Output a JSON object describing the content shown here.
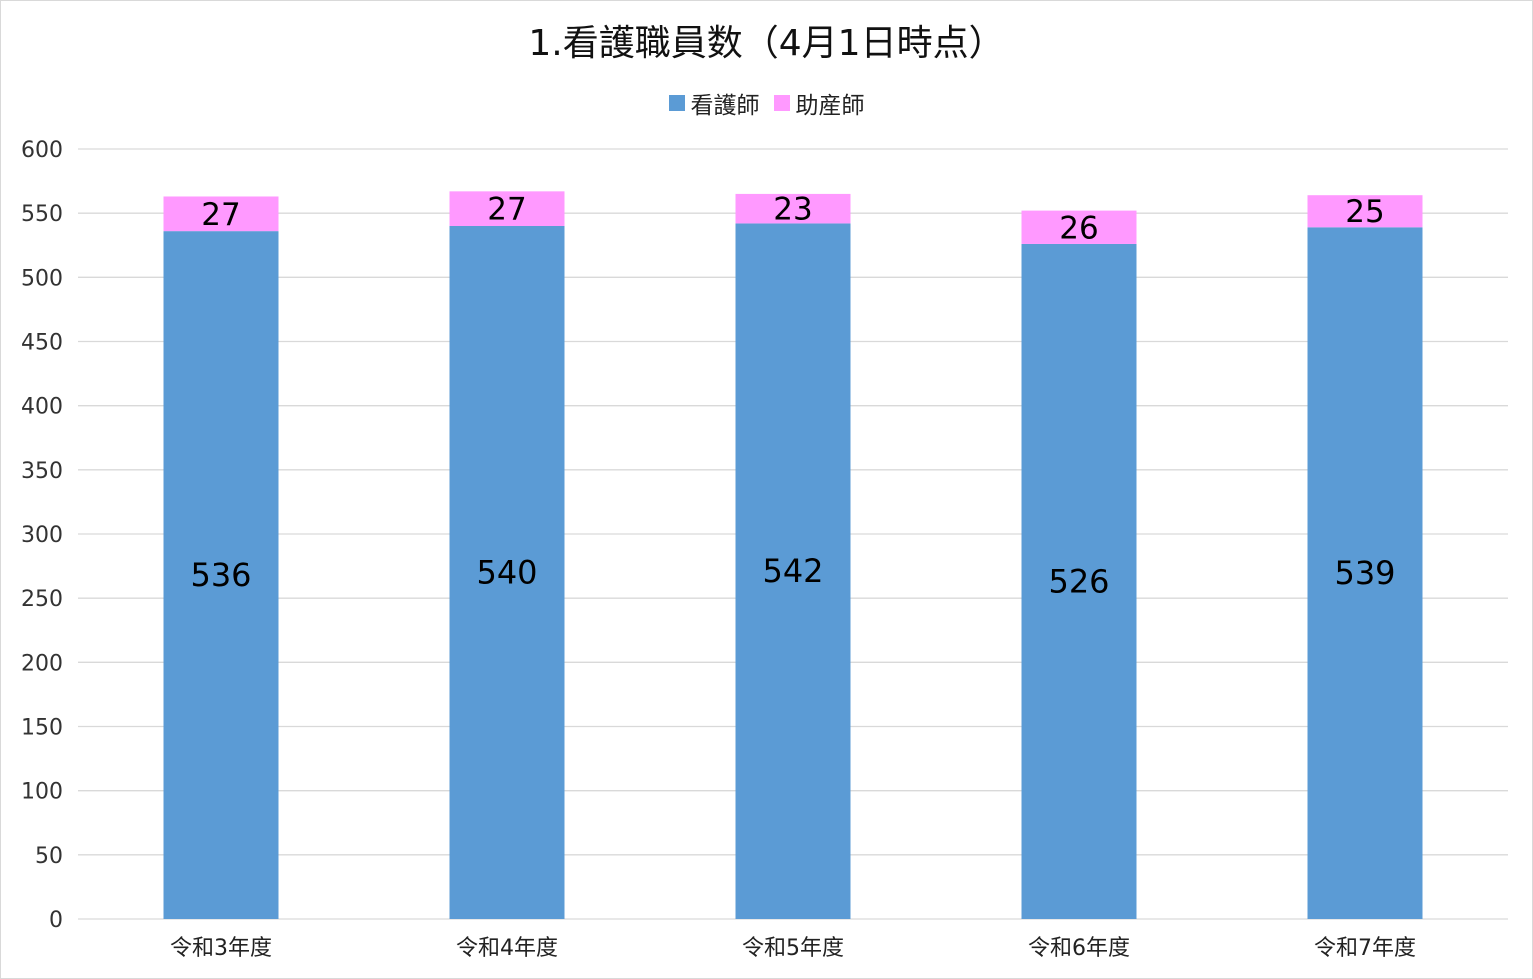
{
  "chart_data": {
    "type": "bar",
    "stacked": true,
    "title": "1.看護職員数（4月1日時点）",
    "categories": [
      "令和3年度",
      "令和4年度",
      "令和5年度",
      "令和6年度",
      "令和7年度"
    ],
    "series": [
      {
        "name": "看護師",
        "values": [
          536,
          540,
          542,
          526,
          539
        ],
        "color": "#5B9BD5"
      },
      {
        "name": "助産師",
        "values": [
          27,
          27,
          23,
          26,
          25
        ],
        "color": "#FF99FF"
      }
    ],
    "ylim": [
      0,
      600
    ],
    "yticks": [
      0,
      50,
      100,
      150,
      200,
      250,
      300,
      350,
      400,
      450,
      500,
      550,
      600
    ],
    "grid": true,
    "legend_position": "top",
    "data_labels": true
  }
}
